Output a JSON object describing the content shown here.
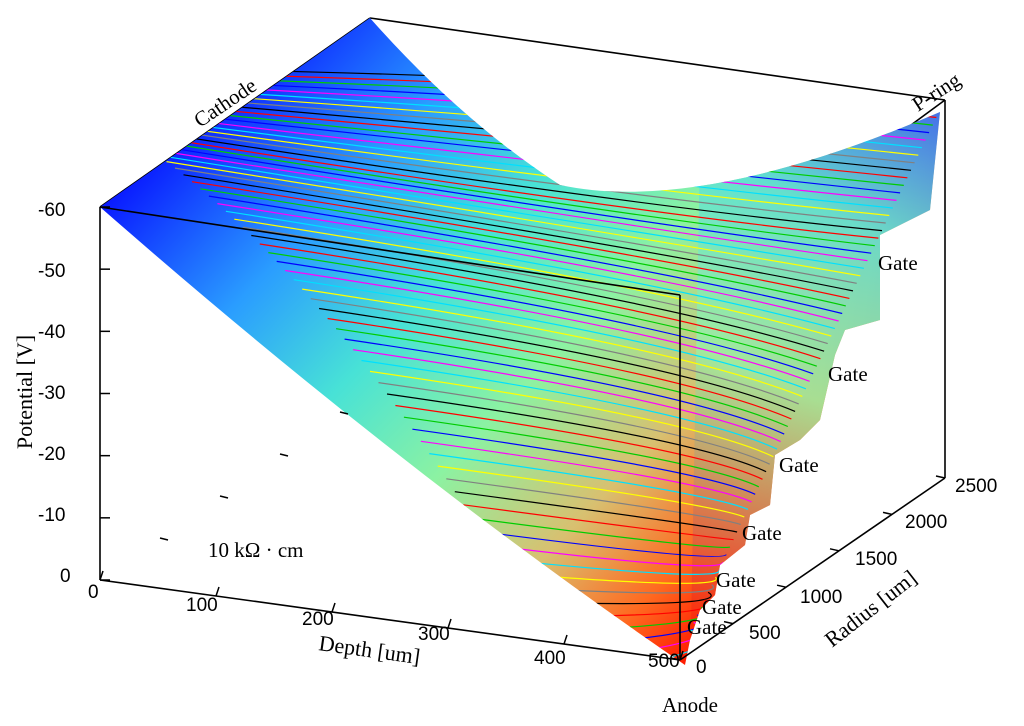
{
  "chart_data": {
    "type": "surface",
    "z_axis": {
      "label": "Potential [V]",
      "ticks": [
        0,
        -10,
        -20,
        -30,
        -40,
        -50,
        -60
      ],
      "range": [
        0,
        -60
      ]
    },
    "x_axis": {
      "label": "Depth [um]",
      "ticks": [
        0,
        100,
        200,
        300,
        400,
        500
      ],
      "range": [
        0,
        500
      ]
    },
    "y_axis": {
      "label": "Radius [um]",
      "ticks": [
        0,
        500,
        1000,
        1500,
        2000,
        2500
      ],
      "range": [
        0,
        2500
      ]
    },
    "annotations": {
      "cathode": "Cathode",
      "p_ring": "P-ring",
      "anode": "Anode",
      "resistivity": "10 kΩ · cm",
      "gates": [
        "Gate",
        "Gate",
        "Gate",
        "Gate",
        "Gate",
        "Gate",
        "Gate"
      ]
    },
    "surface_samples": [
      {
        "depth": 0,
        "radius": 0,
        "potential": -60
      },
      {
        "depth": 500,
        "radius": 0,
        "potential": 0
      },
      {
        "depth": 0,
        "radius": 2500,
        "potential": -60
      },
      {
        "depth": 250,
        "radius": 1500,
        "potential": -45
      },
      {
        "depth": 500,
        "radius": 2500,
        "potential": -55
      }
    ],
    "colormap": [
      "#0000ff",
      "#30a0ff",
      "#40e0e0",
      "#80f0a0",
      "#f0b060",
      "#ff2000"
    ],
    "contour_colors": [
      "#000000",
      "#ff0000",
      "#00cc00",
      "#0000ff",
      "#ff00ff",
      "#00e0ff",
      "#ffff00",
      "#808080"
    ]
  }
}
